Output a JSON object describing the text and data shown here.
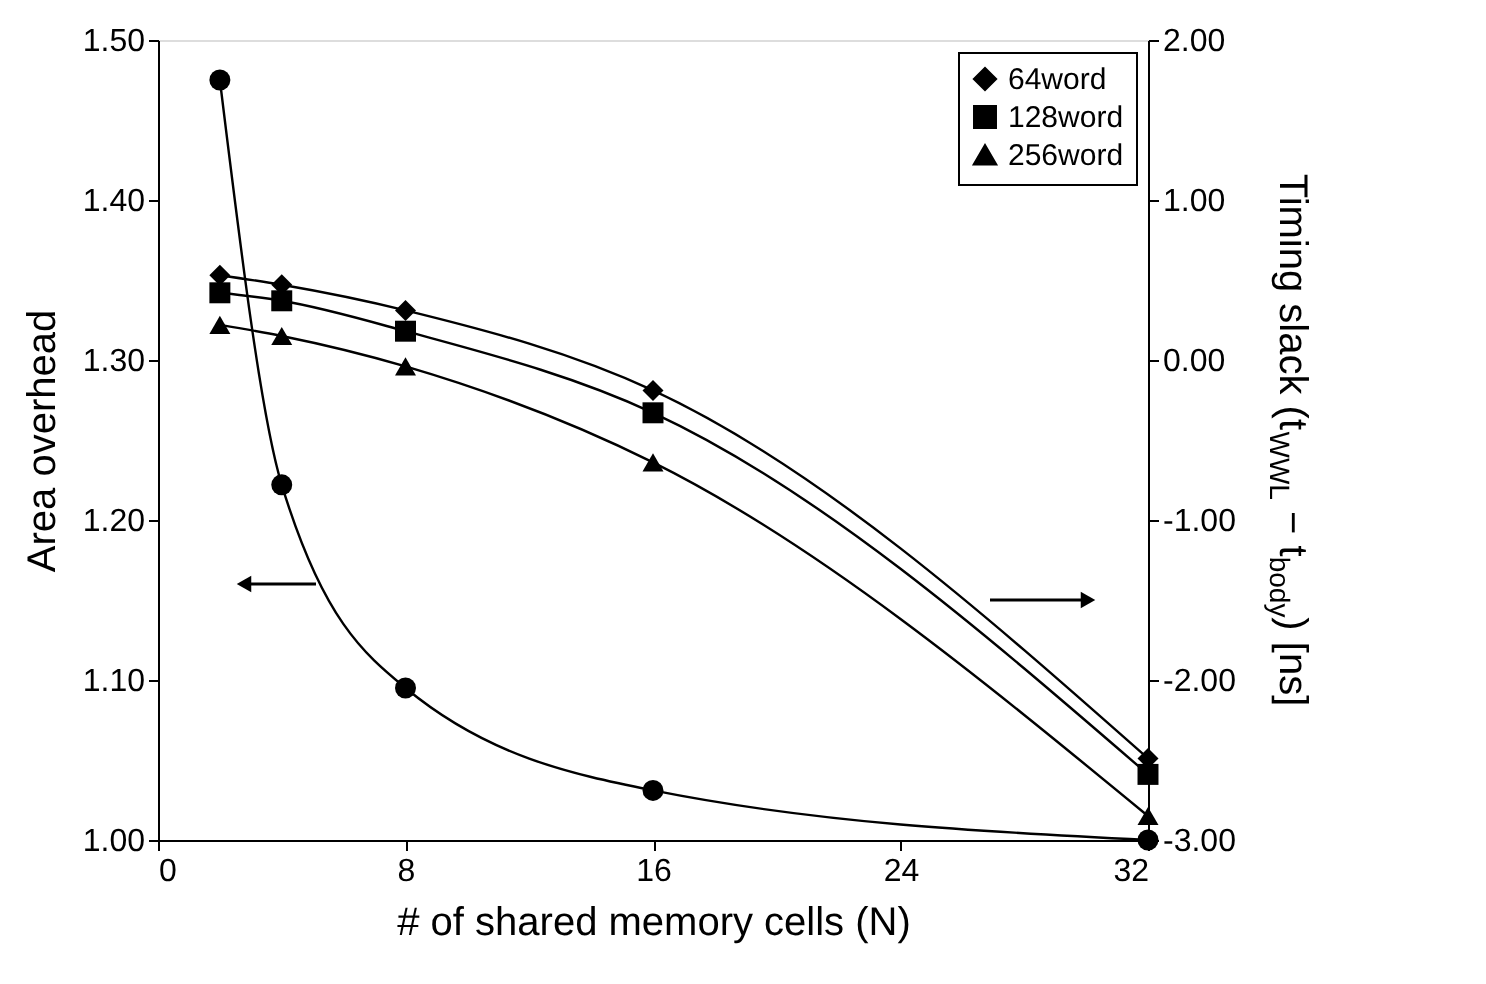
{
  "chart_data": {
    "type": "line",
    "xlabel": "# of shared memory cells (N)",
    "ylabel": "Area overhead",
    "y2label": "Timing slack (t$_{WWL}$ − t$_{body}$) [ns]",
    "x": [
      2,
      4,
      8,
      16,
      32
    ],
    "series": [
      {
        "color": "#000000",
        "marker": "circle",
        "values": [
          1.475,
          1.222,
          1.095,
          1.031,
          1.0
        ]
      },
      {
        "name": "64word",
        "color": "#000000",
        "marker": "diamond",
        "axis": "y2",
        "values": [
          0.53,
          0.47,
          0.31,
          -0.19,
          -2.49
        ]
      },
      {
        "name": "128word",
        "color": "#000000",
        "marker": "square",
        "axis": "y2",
        "values": [
          0.42,
          0.37,
          0.18,
          -0.33,
          -2.59
        ]
      },
      {
        "name": "256word",
        "color": "#000000",
        "marker": "triangle",
        "axis": "y2",
        "values": [
          0.22,
          0.15,
          -0.04,
          -0.64,
          -2.85
        ]
      }
    ],
    "xlim": [
      0,
      32
    ],
    "xticks": [
      0,
      8,
      16,
      24,
      32
    ],
    "ylim": [
      1.0,
      1.5
    ],
    "yticks": [
      {
        "value": 1.0,
        "label": "1.00"
      },
      {
        "value": 1.1,
        "label": "1.10"
      },
      {
        "value": 1.2,
        "label": "1.20"
      },
      {
        "value": 1.3,
        "label": "1.30"
      },
      {
        "value": 1.4,
        "label": "1.40"
      },
      {
        "value": 1.5,
        "label": "1.50"
      }
    ],
    "y2lim": [
      -3.0,
      2.0
    ],
    "y2ticks": [
      {
        "value": -3.0,
        "label": "-3.00"
      },
      {
        "value": -2.0,
        "label": "-2.00"
      },
      {
        "value": -1.0,
        "label": "-1.00"
      },
      {
        "value": 0.0,
        "label": "0.00"
      },
      {
        "value": 1.0,
        "label": "1.00"
      },
      {
        "value": 2.0,
        "label": "2.00"
      }
    ],
    "grid": false,
    "legend": "top right",
    "line_style": "solid"
  }
}
